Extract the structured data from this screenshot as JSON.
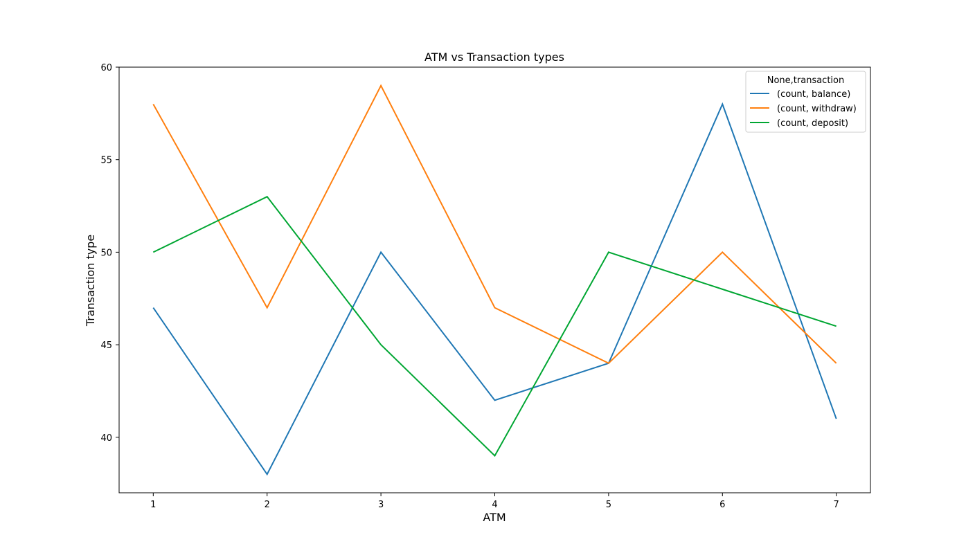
{
  "chart_data": {
    "type": "line",
    "title": "ATM vs Transaction types",
    "xlabel": "ATM",
    "ylabel": "Transaction type",
    "x": [
      1,
      2,
      3,
      4,
      5,
      6,
      7
    ],
    "xlim": [
      0.7,
      7.3
    ],
    "ylim": [
      37,
      60
    ],
    "xticks": [
      "1",
      "2",
      "3",
      "4",
      "5",
      "6",
      "7"
    ],
    "yticks": [
      40,
      45,
      50,
      55,
      60
    ],
    "grid": false,
    "legend": {
      "title": "None,transaction",
      "position": "top-right"
    },
    "series": [
      {
        "name": "(count, balance)",
        "color": "#1f77b4",
        "values": [
          47,
          38,
          50,
          42,
          44,
          58,
          41
        ]
      },
      {
        "name": "(count, withdraw)",
        "color": "#ff7f0e",
        "values": [
          58,
          47,
          59,
          47,
          44,
          50,
          44
        ]
      },
      {
        "name": "(count, deposit)",
        "color": "#00a632",
        "values": [
          50,
          53,
          45,
          39,
          50,
          48,
          46
        ]
      }
    ]
  }
}
